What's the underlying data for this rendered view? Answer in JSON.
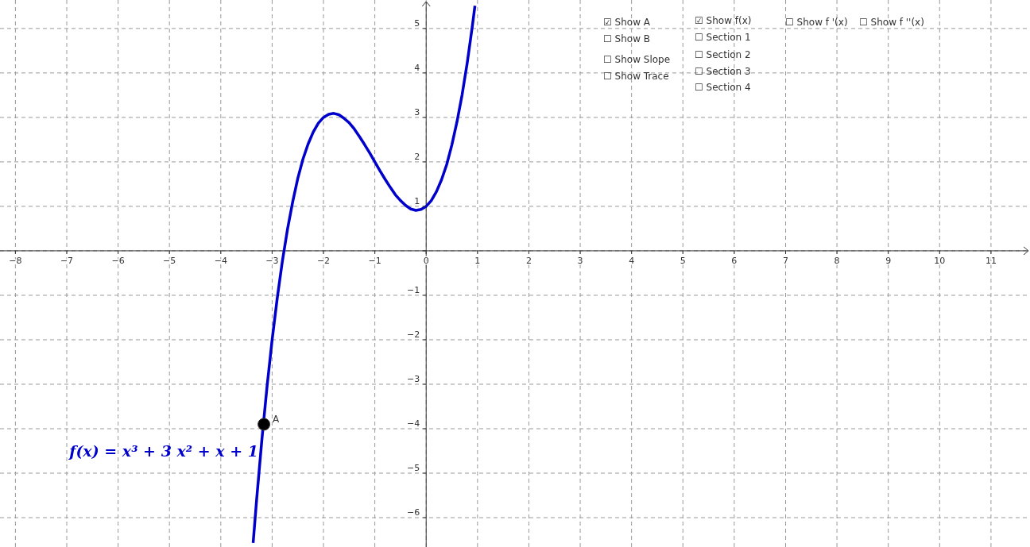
{
  "chart_data": {
    "type": "line",
    "xlim": [
      -8.3,
      11.76
    ],
    "ylim": [
      -6.66,
      5.64
    ],
    "xticks": [
      -8,
      -7,
      -6,
      -5,
      -4,
      -3,
      -2,
      -1,
      {
        "value": 0,
        "label": "0"
      },
      1,
      2,
      3,
      4,
      5,
      6,
      7,
      8,
      9,
      10,
      11
    ],
    "yticks": [
      -6,
      -5,
      -4,
      -3,
      -2,
      -1,
      {
        "value": 0,
        "label": null
      },
      1,
      2,
      3,
      4,
      5
    ],
    "grid": true,
    "line_style": "solid",
    "marker": "none",
    "series": [
      {
        "name": "f(x) = x³ + 3 x² + x + 1",
        "color": "#0000cc",
        "x": [
          -3.37,
          -3.3,
          -3.2,
          -3.1,
          -3.0,
          -2.9,
          -2.8,
          -2.7,
          -2.6,
          -2.5,
          -2.4,
          -2.3,
          -2.2,
          -2.1,
          -2.0,
          -1.9,
          -1.8,
          -1.7,
          -1.6,
          -1.5,
          -1.4,
          -1.3,
          -1.2,
          -1.1,
          -1.0,
          -0.9,
          -0.8,
          -0.7,
          -0.6,
          -0.5,
          -0.4,
          -0.3,
          -0.2,
          -0.1,
          0,
          0.1,
          0.2,
          0.3,
          0.4,
          0.5,
          0.6,
          0.7,
          0.8,
          0.9,
          0.95
        ],
        "values": [
          -6.57,
          -5.57,
          -4.25,
          -3.06,
          -2,
          -1.06,
          -0.23,
          0.49,
          1.1,
          1.63,
          2.06,
          2.4,
          2.67,
          2.87,
          3,
          3.07,
          3.09,
          3.06,
          2.98,
          2.88,
          2.74,
          2.57,
          2.39,
          2.2,
          2,
          1.8,
          1.61,
          1.43,
          1.26,
          1.13,
          1.02,
          0.94,
          0.91,
          0.93,
          1,
          1.13,
          1.33,
          1.6,
          1.94,
          2.38,
          2.9,
          3.51,
          4.23,
          5.06,
          5.51
        ]
      },
      {
        "name": "A",
        "type": "scatter",
        "marker": "circle",
        "color": "#000000",
        "x": [
          -3.16
        ],
        "values": [
          -3.9
        ]
      }
    ],
    "annotations": [
      "☑ Show A",
      "☐ Show B",
      "☐ Show Slope",
      "☐ Show Trace",
      "☑ Show f(x)",
      "☐ Section 1",
      "☐ Section 2",
      "☐ Section 3",
      "☐ Section 4",
      "☐ Show f '(x)",
      "☐ Show f ''(x)"
    ]
  }
}
